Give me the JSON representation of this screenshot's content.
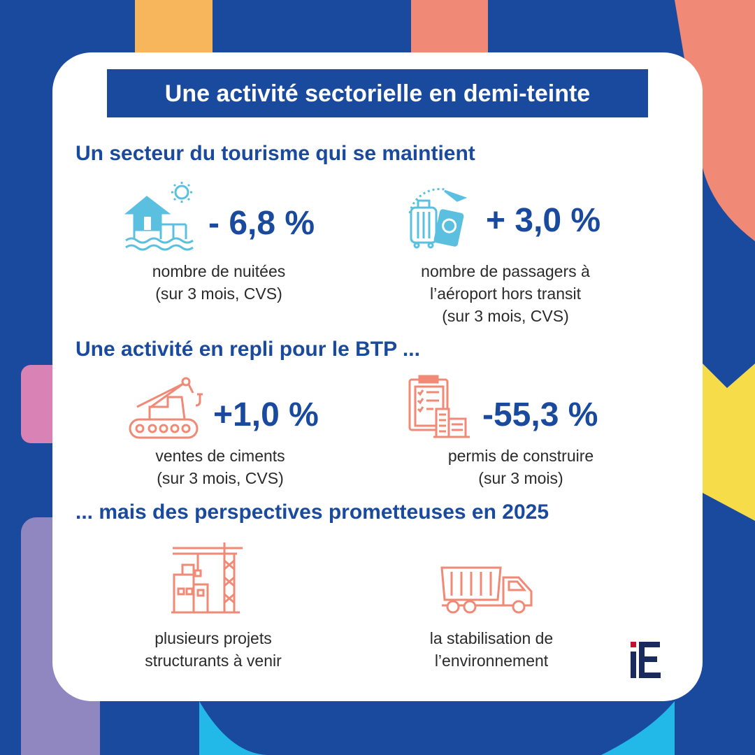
{
  "title": "Une activité sectorielle en demi-teinte",
  "sections": [
    {
      "heading": "Un secteur du tourisme qui se maintient",
      "items": [
        {
          "icon": "water-bungalow-icon",
          "value": "- 6,8 %",
          "caption": [
            "nombre de nuitées",
            "(sur 3 mois, CVS)"
          ]
        },
        {
          "icon": "luggage-passport-icon",
          "value": "+ 3,0 %",
          "caption": [
            "nombre de passagers à",
            "l’aéroport hors transit",
            "(sur 3 mois, CVS)"
          ]
        }
      ]
    },
    {
      "heading": "Une activité en repli pour le BTP ...",
      "items": [
        {
          "icon": "crane-vehicle-icon",
          "value": "+1,0 %",
          "caption": [
            "ventes de ciments",
            "(sur 3 mois, CVS)"
          ]
        },
        {
          "icon": "building-permit-icon",
          "value": "-55,3 %",
          "caption": [
            "permis de construire",
            "(sur 3 mois)"
          ]
        }
      ]
    },
    {
      "heading": "... mais des perspectives prometteuses en 2025",
      "items": [
        {
          "icon": "construction-crane-icon",
          "caption": [
            "plusieurs projets",
            "structurants à venir"
          ]
        },
        {
          "icon": "dump-truck-icon",
          "caption": [
            "la stabilisation de",
            "l’environnement"
          ]
        }
      ]
    }
  ],
  "logo": {
    "text": "iE",
    "colors": {
      "i": "#c8102e",
      "E": "#1a2a5c"
    }
  },
  "colors": {
    "navy": "#1a4a9e",
    "coral": "#f08a76",
    "sky": "#5bc0e0",
    "yellow": "#f7dc4a",
    "orange": "#f7b55c",
    "pink": "#d982b5",
    "lavender": "#9086c0",
    "cyan": "#22b8e8"
  }
}
